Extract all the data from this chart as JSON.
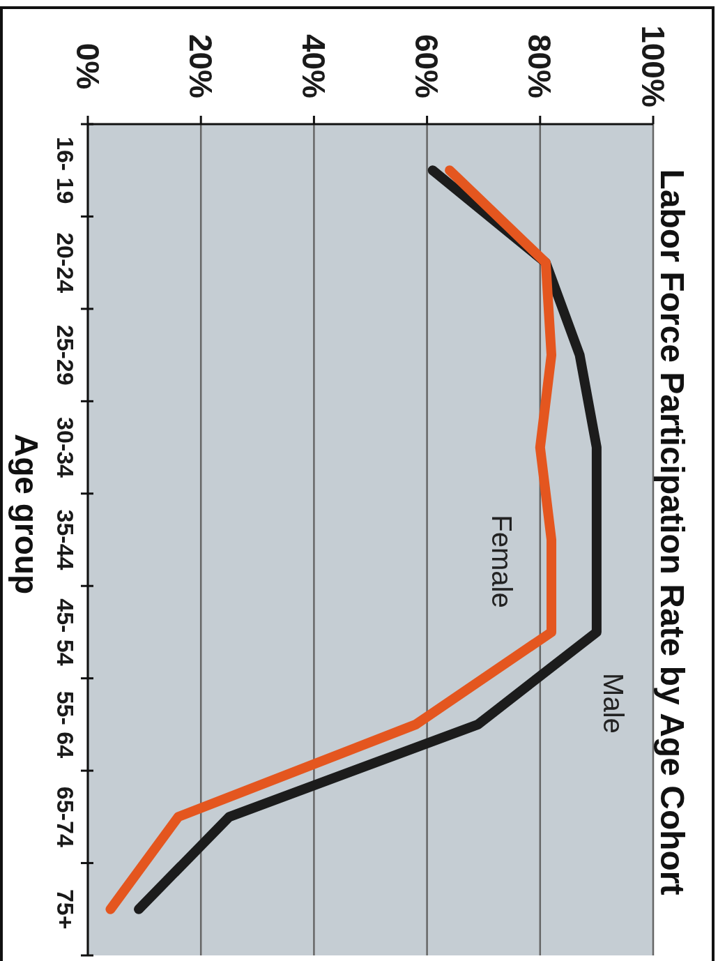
{
  "chart_data": {
    "type": "line",
    "orientation": "horizontal",
    "title": "Labor Force Participation Rate by Age Cohort",
    "ylabel": "Age group",
    "categories": [
      "16- 19",
      "20-24",
      "25-29",
      "30-34",
      "35-44",
      "45- 54",
      "55- 64",
      "65-74",
      "75+"
    ],
    "series": [
      {
        "name": "Male",
        "color": "#1c1c1c",
        "values": [
          61,
          81,
          87,
          90,
          90,
          90,
          69,
          25,
          9
        ]
      },
      {
        "name": "Female",
        "color": "#e4561f",
        "values": [
          64,
          81,
          82,
          80,
          82,
          82,
          58,
          16,
          4
        ]
      }
    ],
    "xlim": [
      0,
      100
    ],
    "xticks": [
      {
        "value": 0,
        "label": "0%"
      },
      {
        "value": 20,
        "label": "20%"
      },
      {
        "value": 40,
        "label": "40%"
      },
      {
        "value": 60,
        "label": "60%"
      },
      {
        "value": 80,
        "label": "80%"
      },
      {
        "value": 100,
        "label": "100%"
      }
    ],
    "grid": "x"
  }
}
